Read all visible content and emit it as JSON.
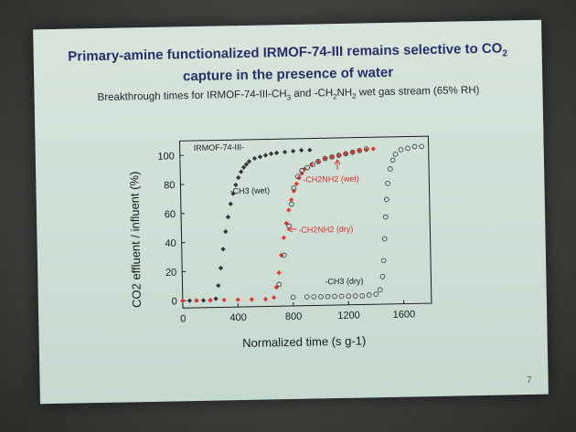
{
  "slide": {
    "title_line1": "Primary-amine functionalized IRMOF-74-III remains selective to CO",
    "title_sub": "2",
    "title_line2": "capture in the presence of water",
    "subtitle_a": "Breakthrough times for IRMOF-74-III-CH",
    "subtitle_sub1": "3",
    "subtitle_b": " and -CH",
    "subtitle_sub2": "2",
    "subtitle_c": "NH",
    "subtitle_sub3": "2",
    "subtitle_d": " wet gas stream (65% RH)",
    "page_number": "7"
  },
  "chart_data": {
    "type": "scatter",
    "xlabel": "Normalized time (s g-1)",
    "ylabel": "CO2 effluent / influent (%)",
    "xlim": [
      0,
      1800
    ],
    "ylim": [
      -5,
      110
    ],
    "x_ticks": [
      0,
      400,
      800,
      1200,
      1600
    ],
    "y_ticks": [
      0,
      20,
      40,
      60,
      80,
      100
    ],
    "annotations": {
      "irmof": "IRMOF-74-III-",
      "ch3_wet": "-CH3 (wet)",
      "ch2nh2_wet": "-CH2NH2 (wet)",
      "ch2nh2_dry": "-CH2NH2 (dry)",
      "ch3_dry": "-CH3 (dry)"
    },
    "series": [
      {
        "name": "-CH3 (wet)",
        "color": "#333333",
        "marker": "filled-diamond",
        "x": [
          0,
          50,
          100,
          150,
          200,
          240,
          260,
          280,
          300,
          320,
          340,
          360,
          380,
          400,
          420,
          440,
          460,
          480,
          500,
          540,
          580,
          620,
          660,
          700,
          760,
          820,
          880,
          940
        ],
        "y": [
          0,
          0,
          0,
          0,
          0,
          1,
          10,
          22,
          35,
          47,
          57,
          66,
          73,
          79,
          84,
          88,
          91,
          93,
          95,
          97,
          98,
          99,
          100,
          100.5,
          101,
          101.5,
          102,
          102
        ]
      },
      {
        "name": "-CH2NH2 (wet)",
        "color": "#e8342c",
        "marker": "filled-diamond",
        "x": [
          0,
          100,
          200,
          300,
          400,
          500,
          600,
          660,
          680,
          700,
          720,
          740,
          760,
          780,
          800,
          820,
          840,
          860,
          880,
          900,
          950,
          1000,
          1050,
          1100,
          1150,
          1200,
          1250,
          1300,
          1350,
          1400
        ],
        "y": [
          0,
          0,
          0,
          0,
          0,
          0,
          0,
          1,
          8,
          18,
          30,
          42,
          52,
          61,
          68,
          74,
          79,
          83,
          86,
          89,
          92,
          94,
          96,
          97,
          98,
          99,
          100,
          101,
          101.5,
          102
        ]
      },
      {
        "name": "-CH2NH2 (dry)",
        "color": "#444444",
        "marker": "open-circle",
        "x": [
          700,
          740,
          780,
          800,
          820,
          850,
          880,
          920,
          960,
          1000,
          1050,
          1100,
          1150,
          1200,
          1250,
          1300,
          1350
        ],
        "y": [
          10,
          30,
          50,
          65,
          76,
          84,
          88,
          90,
          92,
          94,
          96,
          97,
          98,
          99,
          100,
          101,
          102
        ]
      },
      {
        "name": "-CH3 (dry)",
        "color": "#444444",
        "marker": "open-circle",
        "x": [
          800,
          900,
          950,
          1000,
          1050,
          1100,
          1150,
          1200,
          1250,
          1300,
          1350,
          1400,
          1430,
          1450,
          1460,
          1470,
          1480,
          1490,
          1500,
          1520,
          1540,
          1560,
          1600,
          1650,
          1700,
          1750
        ],
        "y": [
          1,
          1,
          1,
          1,
          1,
          1,
          1,
          1,
          1,
          1,
          1.5,
          2,
          5,
          14,
          25,
          40,
          55,
          67,
          78,
          88,
          94,
          98,
          101,
          102,
          103,
          103
        ]
      }
    ]
  }
}
